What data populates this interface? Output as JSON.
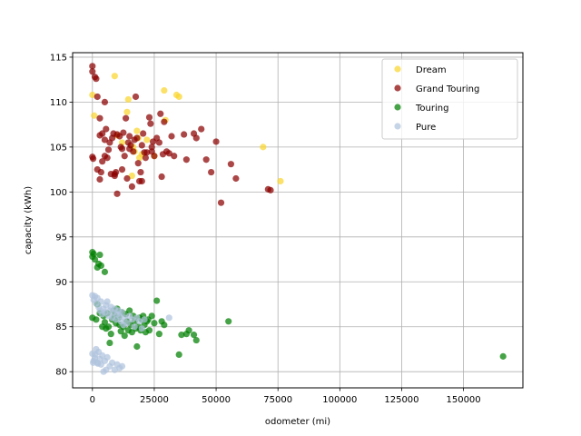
{
  "chart_data": {
    "type": "scatter",
    "xlabel": "odometer (mi)",
    "ylabel": "capacity (kWh)",
    "xlim": [
      -8000,
      174000
    ],
    "ylim": [
      78.2,
      115.5
    ],
    "xticks": [
      0,
      25000,
      50000,
      75000,
      100000,
      125000,
      150000
    ],
    "yticks": [
      80,
      85,
      90,
      95,
      100,
      105,
      110,
      115
    ],
    "grid": true,
    "legend_position": "top-right",
    "series": [
      {
        "name": "Dream",
        "color": "#f9d62e",
        "points": [
          [
            0,
            110.8
          ],
          [
            700,
            108.5
          ],
          [
            9000,
            112.9
          ],
          [
            14000,
            108.9
          ],
          [
            14500,
            110.3
          ],
          [
            16000,
            101.8
          ],
          [
            17000,
            104.5
          ],
          [
            18000,
            106.8
          ],
          [
            18500,
            106.0
          ],
          [
            29000,
            111.3
          ],
          [
            29500,
            108.0
          ],
          [
            34000,
            110.8
          ],
          [
            35000,
            110.6
          ],
          [
            69000,
            105.0
          ],
          [
            76000,
            101.2
          ],
          [
            12000,
            105.5
          ],
          [
            20000,
            104.2
          ],
          [
            22000,
            105.8
          ],
          [
            10000,
            106.3
          ],
          [
            16500,
            105.0
          ],
          [
            25000,
            104.0
          ],
          [
            19000,
            103.8
          ]
        ]
      },
      {
        "name": "Grand Touring",
        "color": "#8b0000",
        "points": [
          [
            0,
            114.0
          ],
          [
            0,
            113.4
          ],
          [
            1000,
            112.8
          ],
          [
            1500,
            112.6
          ],
          [
            2000,
            110.6
          ],
          [
            5000,
            110.0
          ],
          [
            3000,
            108.2
          ],
          [
            0,
            103.9
          ],
          [
            300,
            103.7
          ],
          [
            2000,
            102.5
          ],
          [
            3500,
            102.2
          ],
          [
            3000,
            101.4
          ],
          [
            5000,
            104.0
          ],
          [
            4000,
            103.4
          ],
          [
            3000,
            106.3
          ],
          [
            4000,
            106.5
          ],
          [
            5500,
            107.0
          ],
          [
            5000,
            105.8
          ],
          [
            6000,
            103.8
          ],
          [
            7000,
            105.5
          ],
          [
            6500,
            104.7
          ],
          [
            8000,
            106.0
          ],
          [
            8500,
            106.5
          ],
          [
            9000,
            101.8
          ],
          [
            9500,
            102.2
          ],
          [
            10000,
            99.8
          ],
          [
            10000,
            106.4
          ],
          [
            11000,
            106.2
          ],
          [
            11500,
            105.0
          ],
          [
            12000,
            104.8
          ],
          [
            12500,
            106.6
          ],
          [
            13000,
            104.0
          ],
          [
            13500,
            108.2
          ],
          [
            14000,
            101.5
          ],
          [
            14500,
            105.5
          ],
          [
            15000,
            104.8
          ],
          [
            15500,
            105.2
          ],
          [
            16000,
            100.6
          ],
          [
            16500,
            104.5
          ],
          [
            17000,
            105.8
          ],
          [
            17500,
            110.6
          ],
          [
            18000,
            106.0
          ],
          [
            18500,
            103.2
          ],
          [
            19000,
            101.2
          ],
          [
            19500,
            102.2
          ],
          [
            20000,
            105.2
          ],
          [
            20500,
            106.5
          ],
          [
            21000,
            104.4
          ],
          [
            21500,
            103.8
          ],
          [
            22000,
            104.4
          ],
          [
            23000,
            108.3
          ],
          [
            23500,
            107.6
          ],
          [
            24000,
            105.0
          ],
          [
            24500,
            105.6
          ],
          [
            25000,
            104.0
          ],
          [
            26000,
            106.0
          ],
          [
            27000,
            105.5
          ],
          [
            27500,
            108.7
          ],
          [
            28000,
            101.7
          ],
          [
            28500,
            104.2
          ],
          [
            29000,
            107.8
          ],
          [
            30000,
            104.5
          ],
          [
            31000,
            104.3
          ],
          [
            32000,
            106.2
          ],
          [
            33000,
            104.0
          ],
          [
            37000,
            106.4
          ],
          [
            38000,
            103.6
          ],
          [
            41000,
            106.5
          ],
          [
            42000,
            106.0
          ],
          [
            44000,
            107.0
          ],
          [
            46000,
            103.6
          ],
          [
            48000,
            102.2
          ],
          [
            50000,
            105.6
          ],
          [
            52000,
            98.8
          ],
          [
            56000,
            103.1
          ],
          [
            58000,
            101.5
          ],
          [
            71000,
            100.3
          ],
          [
            72000,
            100.2
          ],
          [
            7500,
            102.0
          ],
          [
            9000,
            102.0
          ],
          [
            12000,
            102.5
          ],
          [
            15000,
            106.2
          ],
          [
            20000,
            101.2
          ],
          [
            24000,
            104.5
          ]
        ]
      },
      {
        "name": "Touring",
        "color": "#008000",
        "points": [
          [
            0,
            93.3
          ],
          [
            0,
            92.8
          ],
          [
            500,
            93.1
          ],
          [
            1000,
            92.5
          ],
          [
            2500,
            92.0
          ],
          [
            3000,
            93.0
          ],
          [
            2000,
            91.6
          ],
          [
            3500,
            91.8
          ],
          [
            5000,
            91.1
          ],
          [
            0,
            86.0
          ],
          [
            1500,
            85.8
          ],
          [
            2000,
            87.5
          ],
          [
            3000,
            86.5
          ],
          [
            4000,
            85.0
          ],
          [
            4500,
            86.2
          ],
          [
            5000,
            85.5
          ],
          [
            5500,
            84.8
          ],
          [
            6000,
            86.5
          ],
          [
            6500,
            85.0
          ],
          [
            7000,
            83.2
          ],
          [
            7500,
            84.2
          ],
          [
            8000,
            85.8
          ],
          [
            8500,
            86.8
          ],
          [
            9000,
            86.2
          ],
          [
            9500,
            85.4
          ],
          [
            10000,
            87.0
          ],
          [
            10500,
            86.0
          ],
          [
            11000,
            85.2
          ],
          [
            11500,
            84.5
          ],
          [
            12000,
            86.6
          ],
          [
            12500,
            85.0
          ],
          [
            13000,
            84.0
          ],
          [
            13500,
            86.4
          ],
          [
            14000,
            85.6
          ],
          [
            14500,
            84.6
          ],
          [
            15000,
            86.8
          ],
          [
            15500,
            85.2
          ],
          [
            16000,
            84.4
          ],
          [
            16500,
            86.2
          ],
          [
            17000,
            85.6
          ],
          [
            17500,
            84.8
          ],
          [
            18000,
            82.8
          ],
          [
            18500,
            85.0
          ],
          [
            19000,
            86.0
          ],
          [
            19500,
            84.6
          ],
          [
            20000,
            85.8
          ],
          [
            20500,
            86.2
          ],
          [
            21000,
            85.2
          ],
          [
            21500,
            84.4
          ],
          [
            22000,
            85.6
          ],
          [
            22500,
            85.8
          ],
          [
            23000,
            84.6
          ],
          [
            24000,
            86.2
          ],
          [
            25000,
            85.4
          ],
          [
            26000,
            87.9
          ],
          [
            27000,
            84.2
          ],
          [
            28000,
            85.6
          ],
          [
            29000,
            85.2
          ],
          [
            35000,
            81.9
          ],
          [
            36000,
            84.1
          ],
          [
            38000,
            84.2
          ],
          [
            39000,
            84.6
          ],
          [
            41000,
            84.1
          ],
          [
            42000,
            83.5
          ],
          [
            55000,
            85.6
          ],
          [
            166000,
            81.7
          ]
        ]
      },
      {
        "name": "Pure",
        "color": "#b0c4de",
        "points": [
          [
            0,
            88.5
          ],
          [
            500,
            88.0
          ],
          [
            1000,
            88.4
          ],
          [
            1500,
            87.6
          ],
          [
            2000,
            88.2
          ],
          [
            2500,
            87.2
          ],
          [
            3000,
            86.8
          ],
          [
            3500,
            87.8
          ],
          [
            4000,
            86.4
          ],
          [
            4500,
            87.0
          ],
          [
            5000,
            86.6
          ],
          [
            5500,
            87.4
          ],
          [
            6000,
            87.8
          ],
          [
            6500,
            86.2
          ],
          [
            7000,
            86.8
          ],
          [
            7500,
            87.2
          ],
          [
            8000,
            86.0
          ],
          [
            8500,
            86.6
          ],
          [
            9000,
            87.0
          ],
          [
            9500,
            85.8
          ],
          [
            10000,
            86.4
          ],
          [
            10500,
            86.8
          ],
          [
            11000,
            86.2
          ],
          [
            11500,
            85.6
          ],
          [
            12000,
            86.6
          ],
          [
            12500,
            85.2
          ],
          [
            13000,
            86.0
          ],
          [
            14000,
            85.4
          ],
          [
            15000,
            86.2
          ],
          [
            16000,
            85.8
          ],
          [
            17000,
            85.0
          ],
          [
            18000,
            86.0
          ],
          [
            19000,
            85.6
          ],
          [
            20000,
            84.8
          ],
          [
            21000,
            85.8
          ],
          [
            31000,
            86.0
          ],
          [
            0,
            82.0
          ],
          [
            500,
            81.2
          ],
          [
            1000,
            81.5
          ],
          [
            1500,
            82.5
          ],
          [
            2000,
            81.0
          ],
          [
            2500,
            82.2
          ],
          [
            3000,
            81.4
          ],
          [
            3500,
            80.8
          ],
          [
            4000,
            81.8
          ],
          [
            4500,
            80.0
          ],
          [
            5000,
            81.2
          ],
          [
            5500,
            80.2
          ],
          [
            6000,
            81.6
          ],
          [
            7000,
            80.6
          ],
          [
            8000,
            81.0
          ],
          [
            9000,
            80.2
          ],
          [
            10000,
            80.8
          ],
          [
            11000,
            80.4
          ],
          [
            12000,
            80.6
          ],
          [
            300,
            81.0
          ],
          [
            1200,
            81.9
          ],
          [
            2200,
            80.9
          ]
        ]
      }
    ]
  }
}
